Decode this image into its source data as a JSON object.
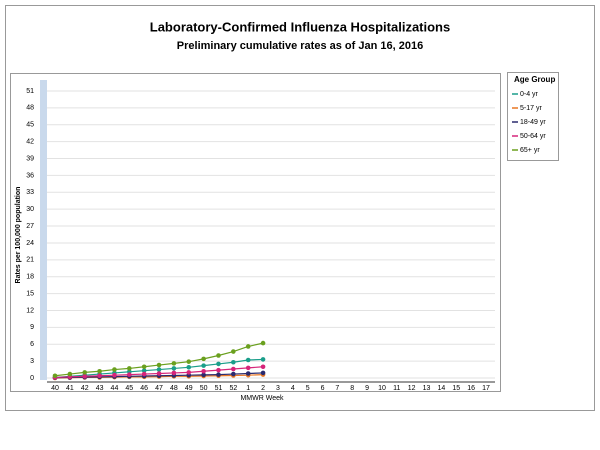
{
  "chart_data": {
    "type": "line",
    "title": "Laboratory-Confirmed Influenza Hospitalizations",
    "subtitle": "Preliminary cumulative rates as of Jan 16, 2016",
    "x_label": "MMWR Week",
    "y_label": "Rates per 100,000 population",
    "legend_title": "Age Group",
    "legend_position": "right",
    "grid": true,
    "categories": [
      "40",
      "41",
      "42",
      "43",
      "44",
      "45",
      "46",
      "47",
      "48",
      "49",
      "50",
      "51",
      "52",
      "1",
      "2",
      "3",
      "4",
      "5",
      "6",
      "7",
      "8",
      "9",
      "10",
      "11",
      "12",
      "13",
      "14",
      "15",
      "16",
      "17"
    ],
    "ylim": [
      0,
      51
    ],
    "yticks": [
      0,
      3,
      6,
      9,
      12,
      15,
      18,
      21,
      24,
      27,
      30,
      33,
      36,
      39,
      42,
      45,
      48,
      51
    ],
    "series": [
      {
        "name": "0-4 yr",
        "color": "#1a9e8a",
        "values": [
          0.1,
          0.3,
          0.5,
          0.7,
          0.9,
          1.1,
          1.3,
          1.5,
          1.7,
          1.9,
          2.2,
          2.5,
          2.8,
          3.2,
          3.3,
          null,
          null,
          null,
          null,
          null,
          null,
          null,
          null,
          null,
          null,
          null,
          null,
          null,
          null,
          null
        ]
      },
      {
        "name": "5-17 yr",
        "color": "#e87722",
        "values": [
          0,
          0.05,
          0.1,
          0.1,
          0.15,
          0.2,
          0.2,
          0.25,
          0.3,
          0.3,
          0.35,
          0.4,
          0.45,
          0.5,
          0.6,
          null,
          null,
          null,
          null,
          null,
          null,
          null,
          null,
          null,
          null,
          null,
          null,
          null,
          null,
          null
        ]
      },
      {
        "name": "18-49 yr",
        "color": "#2a2a6e",
        "values": [
          0.05,
          0.1,
          0.15,
          0.2,
          0.25,
          0.3,
          0.35,
          0.4,
          0.45,
          0.5,
          0.55,
          0.6,
          0.7,
          0.8,
          0.9,
          null,
          null,
          null,
          null,
          null,
          null,
          null,
          null,
          null,
          null,
          null,
          null,
          null,
          null,
          null
        ]
      },
      {
        "name": "50-64 yr",
        "color": "#d6257a",
        "values": [
          0.1,
          0.2,
          0.3,
          0.4,
          0.5,
          0.6,
          0.7,
          0.8,
          0.9,
          1.0,
          1.2,
          1.4,
          1.6,
          1.8,
          2.0,
          null,
          null,
          null,
          null,
          null,
          null,
          null,
          null,
          null,
          null,
          null,
          null,
          null,
          null,
          null
        ]
      },
      {
        "name": "65+ yr",
        "color": "#6aa01e",
        "values": [
          0.4,
          0.7,
          1.0,
          1.2,
          1.5,
          1.7,
          2.0,
          2.3,
          2.6,
          2.9,
          3.4,
          4.0,
          4.7,
          5.6,
          6.2,
          null,
          null,
          null,
          null,
          null,
          null,
          null,
          null,
          null,
          null,
          null,
          null,
          null,
          null,
          null
        ]
      }
    ]
  }
}
